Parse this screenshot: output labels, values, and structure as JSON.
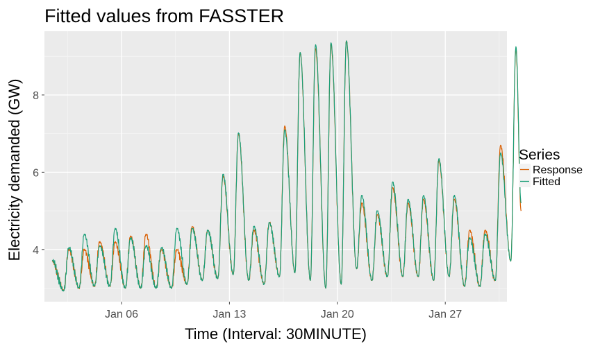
{
  "chart_data": {
    "type": "line",
    "title": "Fitted values from FASSTER",
    "xlabel": "Time (Interval: 30MINUTE)",
    "ylabel": "Electricity demanded (GW)",
    "xlim": [
      "2014-01-01",
      "2014-01-31"
    ],
    "ylim": [
      2.65,
      9.65
    ],
    "x_ticks": [
      {
        "date": "2014-01-06",
        "label": "Jan 06"
      },
      {
        "date": "2014-01-13",
        "label": "Jan 13"
      },
      {
        "date": "2014-01-20",
        "label": "Jan 20"
      },
      {
        "date": "2014-01-27",
        "label": "Jan 27"
      }
    ],
    "y_ticks": [
      4,
      6,
      8
    ],
    "grid": true,
    "background": "#ebebeb",
    "legend": {
      "title": "Series",
      "placement": "right",
      "entries": [
        {
          "name": "Response",
          "color": "#d95f02"
        },
        {
          "name": "Fitted",
          "color": "#1b9e77"
        }
      ]
    },
    "series": [
      {
        "name": "Response",
        "color": "#d95f02",
        "points": [
          [
            "2014-01-01T12:00",
            3.7
          ],
          [
            "2014-01-02T06:00",
            2.95
          ],
          [
            "2014-01-02T14:00",
            4.0
          ],
          [
            "2014-01-03T06:00",
            3.0
          ],
          [
            "2014-01-03T14:00",
            4.0
          ],
          [
            "2014-01-04T06:00",
            3.05
          ],
          [
            "2014-01-04T14:00",
            4.2
          ],
          [
            "2014-01-05T06:00",
            3.05
          ],
          [
            "2014-01-05T14:00",
            4.2
          ],
          [
            "2014-01-06T06:00",
            3.0
          ],
          [
            "2014-01-06T14:00",
            4.35
          ],
          [
            "2014-01-07T06:00",
            3.0
          ],
          [
            "2014-01-07T14:00",
            4.4
          ],
          [
            "2014-01-08T06:00",
            3.0
          ],
          [
            "2014-01-08T14:00",
            4.0
          ],
          [
            "2014-01-09T06:00",
            3.0
          ],
          [
            "2014-01-09T14:00",
            4.0
          ],
          [
            "2014-01-10T06:00",
            3.1
          ],
          [
            "2014-01-10T14:00",
            4.6
          ],
          [
            "2014-01-11T06:00",
            3.2
          ],
          [
            "2014-01-11T14:00",
            4.5
          ],
          [
            "2014-01-12T06:00",
            3.25
          ],
          [
            "2014-01-12T14:00",
            5.9
          ],
          [
            "2014-01-13T06:00",
            3.35
          ],
          [
            "2014-01-13T14:00",
            7.0
          ],
          [
            "2014-01-14T06:00",
            3.2
          ],
          [
            "2014-01-14T14:00",
            4.5
          ],
          [
            "2014-01-15T06:00",
            3.1
          ],
          [
            "2014-01-15T14:00",
            4.7
          ],
          [
            "2014-01-16T06:00",
            3.3
          ],
          [
            "2014-01-16T14:00",
            7.2
          ],
          [
            "2014-01-17T06:00",
            3.4
          ],
          [
            "2014-01-17T14:00",
            9.1
          ],
          [
            "2014-01-18T06:00",
            3.2
          ],
          [
            "2014-01-18T14:00",
            9.2
          ],
          [
            "2014-01-19T06:00",
            3.0
          ],
          [
            "2014-01-19T14:00",
            9.3
          ],
          [
            "2014-01-20T06:00",
            3.1
          ],
          [
            "2014-01-20T14:00",
            9.4
          ],
          [
            "2014-01-21T06:00",
            3.5
          ],
          [
            "2014-01-21T14:00",
            5.2
          ],
          [
            "2014-01-22T06:00",
            3.2
          ],
          [
            "2014-01-22T14:00",
            4.9
          ],
          [
            "2014-01-23T06:00",
            3.3
          ],
          [
            "2014-01-23T14:00",
            5.6
          ],
          [
            "2014-01-24T06:00",
            3.3
          ],
          [
            "2014-01-24T14:00",
            5.2
          ],
          [
            "2014-01-25T06:00",
            3.3
          ],
          [
            "2014-01-25T14:00",
            5.3
          ],
          [
            "2014-01-26T06:00",
            3.2
          ],
          [
            "2014-01-26T14:00",
            6.3
          ],
          [
            "2014-01-27T06:00",
            3.3
          ],
          [
            "2014-01-27T14:00",
            5.3
          ],
          [
            "2014-01-28T06:00",
            3.05
          ],
          [
            "2014-01-28T14:00",
            4.5
          ],
          [
            "2014-01-29T06:00",
            3.05
          ],
          [
            "2014-01-29T14:00",
            4.5
          ],
          [
            "2014-01-30T06:00",
            3.2
          ],
          [
            "2014-01-30T14:00",
            6.7
          ],
          [
            "2014-01-31T06:00",
            3.7
          ],
          [
            "2014-01-31T14:00",
            9.2
          ],
          [
            "2014-01-31T22:00",
            5.0
          ]
        ]
      },
      {
        "name": "Fitted",
        "color": "#1b9e77",
        "points": [
          [
            "2014-01-01T12:00",
            3.72
          ],
          [
            "2014-01-02T06:00",
            2.93
          ],
          [
            "2014-01-02T14:00",
            4.05
          ],
          [
            "2014-01-03T06:00",
            3.0
          ],
          [
            "2014-01-03T14:00",
            4.4
          ],
          [
            "2014-01-04T06:00",
            3.05
          ],
          [
            "2014-01-04T14:00",
            4.1
          ],
          [
            "2014-01-05T06:00",
            3.05
          ],
          [
            "2014-01-05T14:00",
            4.55
          ],
          [
            "2014-01-06T06:00",
            3.0
          ],
          [
            "2014-01-06T14:00",
            4.3
          ],
          [
            "2014-01-07T06:00",
            3.0
          ],
          [
            "2014-01-07T14:00",
            4.1
          ],
          [
            "2014-01-08T06:00",
            3.0
          ],
          [
            "2014-01-08T14:00",
            4.05
          ],
          [
            "2014-01-09T06:00",
            3.0
          ],
          [
            "2014-01-09T14:00",
            4.55
          ],
          [
            "2014-01-10T06:00",
            3.1
          ],
          [
            "2014-01-10T14:00",
            4.55
          ],
          [
            "2014-01-11T06:00",
            3.2
          ],
          [
            "2014-01-11T14:00",
            4.5
          ],
          [
            "2014-01-12T06:00",
            3.25
          ],
          [
            "2014-01-12T14:00",
            5.95
          ],
          [
            "2014-01-13T06:00",
            3.35
          ],
          [
            "2014-01-13T14:00",
            7.02
          ],
          [
            "2014-01-14T06:00",
            3.2
          ],
          [
            "2014-01-14T14:00",
            4.6
          ],
          [
            "2014-01-15T06:00",
            3.1
          ],
          [
            "2014-01-15T14:00",
            4.7
          ],
          [
            "2014-01-16T06:00",
            3.3
          ],
          [
            "2014-01-16T14:00",
            7.1
          ],
          [
            "2014-01-17T06:00",
            3.4
          ],
          [
            "2014-01-17T14:00",
            9.1
          ],
          [
            "2014-01-18T06:00",
            3.2
          ],
          [
            "2014-01-18T14:00",
            9.3
          ],
          [
            "2014-01-19T06:00",
            3.0
          ],
          [
            "2014-01-19T14:00",
            9.35
          ],
          [
            "2014-01-20T06:00",
            3.1
          ],
          [
            "2014-01-20T14:00",
            9.4
          ],
          [
            "2014-01-21T06:00",
            3.5
          ],
          [
            "2014-01-21T14:00",
            5.4
          ],
          [
            "2014-01-22T06:00",
            3.2
          ],
          [
            "2014-01-22T14:00",
            5.0
          ],
          [
            "2014-01-23T06:00",
            3.3
          ],
          [
            "2014-01-23T14:00",
            5.75
          ],
          [
            "2014-01-24T06:00",
            3.3
          ],
          [
            "2014-01-24T14:00",
            5.3
          ],
          [
            "2014-01-25T06:00",
            3.3
          ],
          [
            "2014-01-25T14:00",
            5.4
          ],
          [
            "2014-01-26T06:00",
            3.2
          ],
          [
            "2014-01-26T14:00",
            6.35
          ],
          [
            "2014-01-27T06:00",
            3.3
          ],
          [
            "2014-01-27T14:00",
            5.4
          ],
          [
            "2014-01-28T06:00",
            3.05
          ],
          [
            "2014-01-28T14:00",
            4.3
          ],
          [
            "2014-01-29T06:00",
            3.05
          ],
          [
            "2014-01-29T14:00",
            4.4
          ],
          [
            "2014-01-30T06:00",
            3.2
          ],
          [
            "2014-01-30T14:00",
            6.5
          ],
          [
            "2014-01-31T06:00",
            3.7
          ],
          [
            "2014-01-31T14:00",
            9.25
          ],
          [
            "2014-01-31T22:00",
            5.2
          ]
        ]
      }
    ]
  }
}
